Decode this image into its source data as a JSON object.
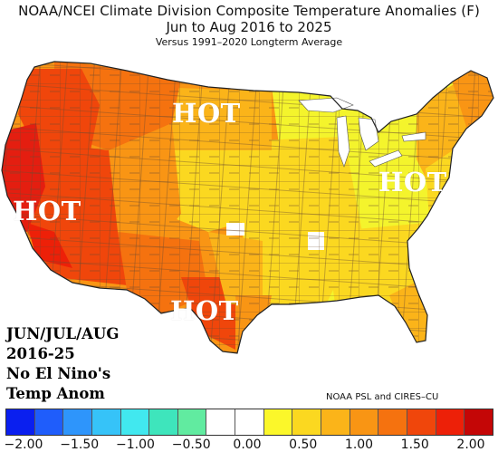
{
  "title": {
    "line1": "NOAA/NCEI Climate Division Composite Temperature Anomalies (F)",
    "line2": "Jun to Aug 2016 to 2025",
    "line3": "Versus 1991–2020 Longterm Average"
  },
  "labels": {
    "north": "HOT",
    "west": "HOT",
    "east": "HOT",
    "south": "HOT"
  },
  "caption": [
    "JUN/JUL/AUG",
    "2016-25",
    "No El Nino's",
    "Temp Anom"
  ],
  "credit": "NOAA PSL and CIRES–CU",
  "legend": {
    "colors": [
      "#0a1fef",
      "#1f5dfb",
      "#2e95fb",
      "#36c3f8",
      "#41e8ef",
      "#3ee5bc",
      "#61eba0",
      "#ffffff",
      "#ffffff",
      "#fbf72a",
      "#fbd820",
      "#fbb419",
      "#f99514",
      "#f5720f",
      "#f0460b",
      "#ed2008",
      "#c40606"
    ],
    "ticks": [
      "−2.00",
      "−1.50",
      "−1.00",
      "−0.50",
      "0.00",
      "0.50",
      "1.00",
      "1.50",
      "2.00"
    ]
  },
  "map_colors": {
    "deep_red": "#e41e10",
    "red": "#f0460b",
    "red_orange": "#f5720f",
    "orange": "#f99514",
    "light_orange": "#fbb419",
    "gold": "#fbd820",
    "yellow": "#f4f42c",
    "white": "#ffffff"
  }
}
